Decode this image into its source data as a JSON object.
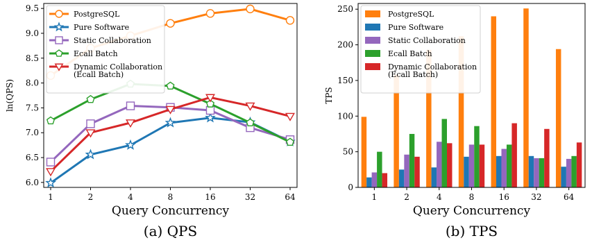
{
  "chart_data": [
    {
      "type": "line",
      "caption": "(a) QPS",
      "xlabel": "Query Concurrency",
      "ylabel": "ln(QPS)",
      "categories": [
        "1",
        "2",
        "4",
        "8",
        "16",
        "32",
        "64"
      ],
      "ylim": [
        5.9,
        9.6
      ],
      "yticks": [
        "6.0",
        "6.5",
        "7.0",
        "7.5",
        "8.0",
        "8.5",
        "9.0",
        "9.5"
      ],
      "legend_position": "top-left",
      "series": [
        {
          "name": "PostgreSQL",
          "color": "#ff7f0e",
          "marker": "circle",
          "values": [
            8.15,
            8.7,
            8.95,
            9.2,
            9.4,
            9.49,
            9.26
          ]
        },
        {
          "name": "Pure Software",
          "color": "#1f77b4",
          "marker": "star",
          "values": [
            5.99,
            6.56,
            6.75,
            7.2,
            7.3,
            7.21,
            6.82
          ]
        },
        {
          "name": "Static Collaboration",
          "color": "#9467bd",
          "marker": "square",
          "values": [
            6.41,
            7.18,
            7.54,
            7.51,
            7.45,
            7.1,
            6.86
          ]
        },
        {
          "name": "Ecall Batch",
          "color": "#2ca02c",
          "marker": "pentagon",
          "values": [
            7.24,
            7.67,
            7.98,
            7.94,
            7.58,
            7.2,
            6.81
          ]
        },
        {
          "name": "Dynamic Collaboration\n(Ecall Batch)",
          "color": "#d62728",
          "marker": "triangle-down",
          "values": [
            6.22,
            7.0,
            7.2,
            7.47,
            7.71,
            7.54,
            7.33
          ]
        }
      ]
    },
    {
      "type": "bar",
      "caption": "(b) TPS",
      "xlabel": "Query Concurrency",
      "ylabel": "TPS",
      "categories": [
        "1",
        "2",
        "4",
        "8",
        "16",
        "32",
        "64"
      ],
      "ylim": [
        0,
        258
      ],
      "yticks": [
        "0",
        "50",
        "100",
        "150",
        "200",
        "250"
      ],
      "legend_position": "top-left",
      "series": [
        {
          "name": "PostgreSQL",
          "color": "#ff7f0e",
          "values": [
            99,
            158,
            193,
            212,
            240,
            251,
            194
          ]
        },
        {
          "name": "Pure Software",
          "color": "#1f77b4",
          "values": [
            14,
            25,
            28,
            43,
            44,
            44,
            29
          ]
        },
        {
          "name": "Static Collaboration",
          "color": "#9467bd",
          "values": [
            21,
            46,
            64,
            60,
            54,
            41,
            40
          ]
        },
        {
          "name": "Ecall Batch",
          "color": "#2ca02c",
          "values": [
            50,
            75,
            96,
            86,
            60,
            41,
            44
          ]
        },
        {
          "name": "Dynamic Collaboration\n(Ecall Batch)",
          "color": "#d62728",
          "values": [
            20,
            43,
            62,
            60,
            90,
            82,
            63
          ]
        }
      ]
    }
  ]
}
